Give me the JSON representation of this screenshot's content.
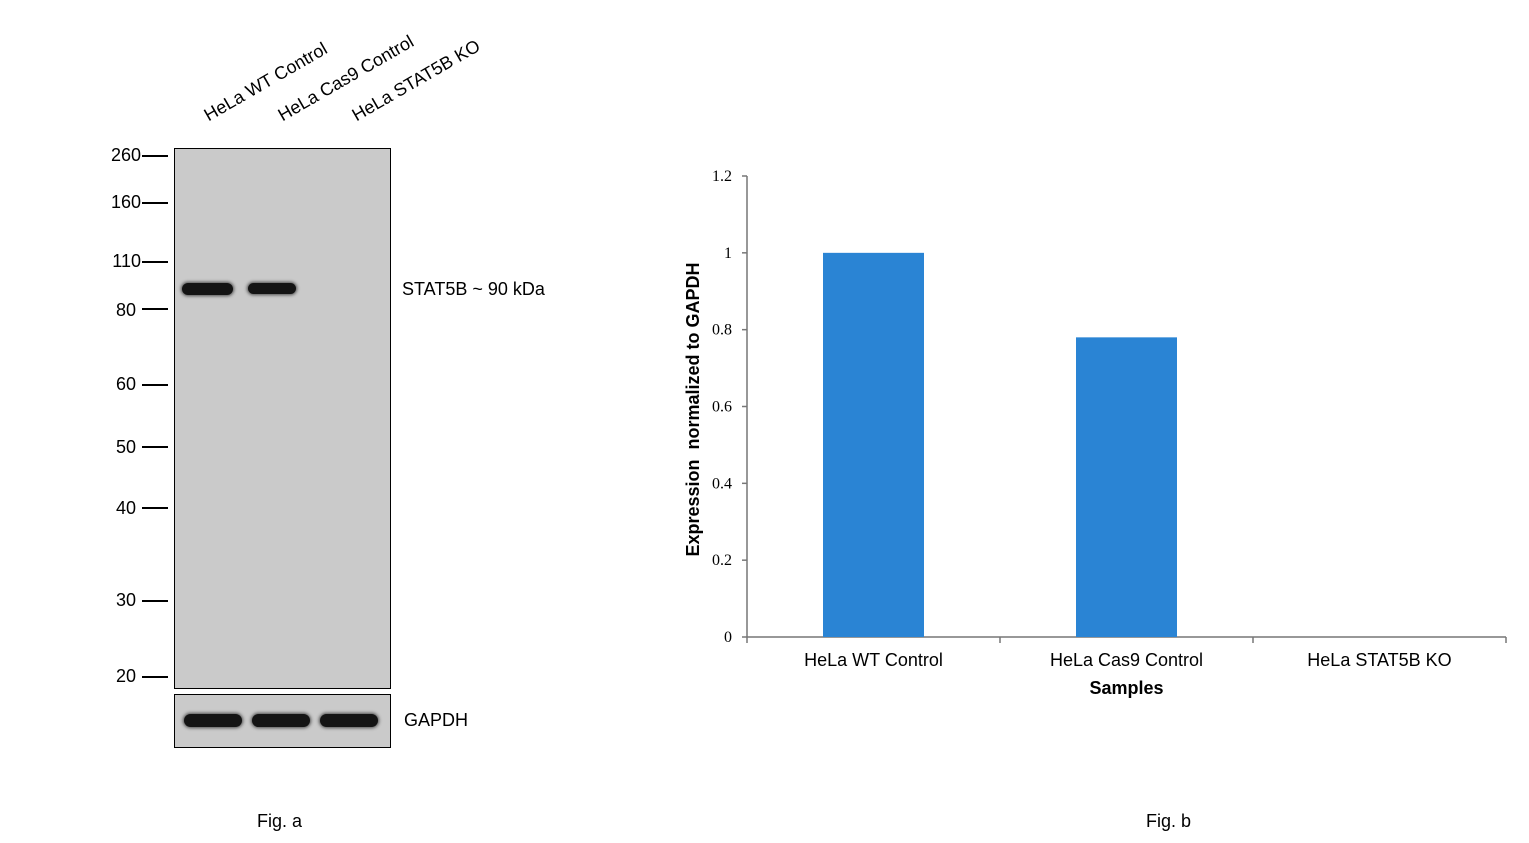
{
  "fig_a": {
    "caption": "Fig. a",
    "lanes": [
      "HeLa WT Control",
      "HeLa Cas9 Control",
      "HeLa STAT5B KO"
    ],
    "markers": [
      "260",
      "160",
      "110",
      "80",
      "60",
      "50",
      "40",
      "30",
      "20"
    ],
    "target_label": "STAT5B ~ 90 kDa",
    "loading_label": "GAPDH"
  },
  "fig_b": {
    "caption": "Fig. b"
  },
  "chart_data": {
    "type": "bar",
    "categories": [
      "HeLa WT Control",
      "HeLa Cas9 Control",
      "HeLa STAT5B KO"
    ],
    "values": [
      1.0,
      0.78,
      0.0
    ],
    "xlabel": "Samples",
    "ylabel": "Expression  normalized to GAPDH",
    "ylim": [
      0,
      1.2
    ],
    "yticks": [
      "0",
      "0.2",
      "0.4",
      "0.6",
      "0.8",
      "1",
      "1.2"
    ],
    "bar_color": "#2a84d4",
    "grid": false,
    "legend": "none"
  }
}
